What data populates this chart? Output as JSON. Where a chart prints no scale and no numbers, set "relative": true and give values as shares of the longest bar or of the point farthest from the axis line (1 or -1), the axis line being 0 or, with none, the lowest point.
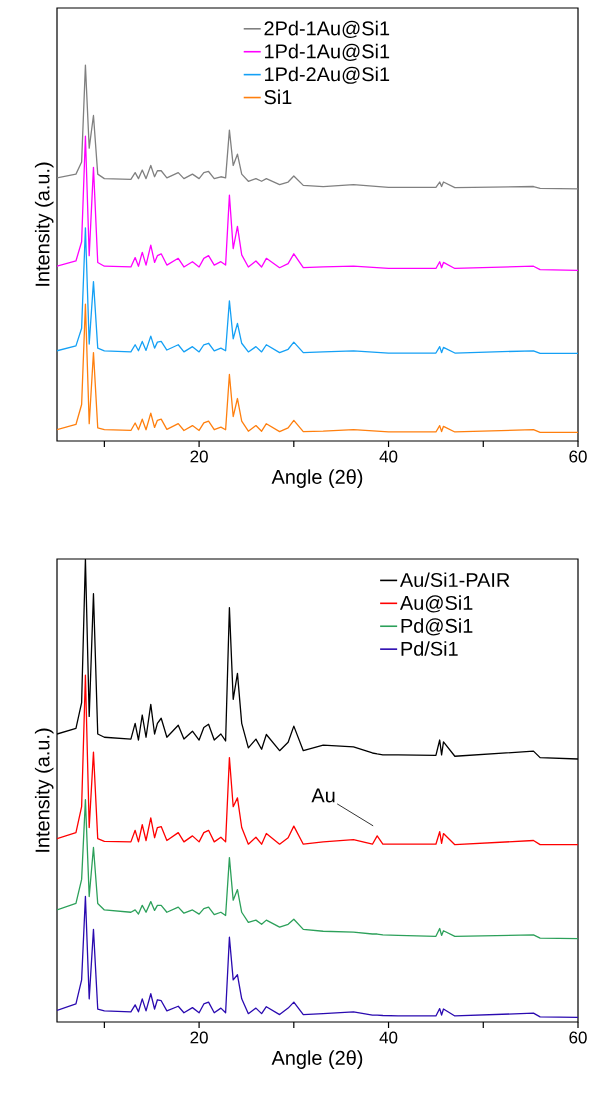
{
  "chart_data": [
    {
      "type": "line",
      "relative": true,
      "xlabel": "Angle (2θ)",
      "ylabel": "Intensity (a.u.)",
      "xlim": [
        5,
        60
      ],
      "xticks": [
        {
          "value": 10,
          "label": null
        },
        20,
        {
          "value": 30,
          "label": null
        },
        40,
        {
          "value": 50,
          "label": null
        },
        60
      ],
      "tick_labels": "x",
      "legend": "top",
      "x": [
        5,
        7.0,
        7.6,
        8.0,
        8.4,
        8.85,
        9.3,
        10,
        12.8,
        13.25,
        13.6,
        14.0,
        14.4,
        14.9,
        15.3,
        15.6,
        16.0,
        16.6,
        17.8,
        18.4,
        19.3,
        20.0,
        20.5,
        21.0,
        21.6,
        22.3,
        22.8,
        23.2,
        23.6,
        24.05,
        24.5,
        25.2,
        26.0,
        26.6,
        27.1,
        28.5,
        29.4,
        30.0,
        31,
        33.1,
        36.3,
        40,
        45.0,
        45.4,
        45.6,
        45.8,
        47,
        55.3,
        56,
        60
      ],
      "series": [
        {
          "name": "2Pd-1Au@Si1",
          "color": "#808080",
          "values": [
            0.7,
            0.71,
            0.742,
            1.0,
            0.779,
            0.866,
            0.71,
            0.698,
            0.696,
            0.714,
            0.698,
            0.721,
            0.698,
            0.733,
            0.703,
            0.719,
            0.719,
            0.7,
            0.714,
            0.698,
            0.71,
            0.698,
            0.714,
            0.717,
            0.698,
            0.703,
            0.7,
            0.827,
            0.733,
            0.763,
            0.71,
            0.691,
            0.698,
            0.691,
            0.698,
            0.682,
            0.689,
            0.705,
            0.68,
            0.677,
            0.682,
            0.675,
            0.675,
            0.689,
            0.677,
            0.689,
            0.674,
            0.677,
            0.672,
            0.671
          ]
        },
        {
          "name": "1Pd-1Au@Si1",
          "color": "#ff00ff",
          "values": [
            0.465,
            0.479,
            0.53,
            0.811,
            0.493,
            0.728,
            0.475,
            0.465,
            0.463,
            0.488,
            0.465,
            0.502,
            0.468,
            0.521,
            0.475,
            0.493,
            0.498,
            0.468,
            0.486,
            0.463,
            0.477,
            0.463,
            0.486,
            0.493,
            0.468,
            0.477,
            0.468,
            0.654,
            0.512,
            0.571,
            0.495,
            0.463,
            0.479,
            0.463,
            0.486,
            0.461,
            0.472,
            0.498,
            0.461,
            0.463,
            0.465,
            0.459,
            0.459,
            0.477,
            0.461,
            0.475,
            0.459,
            0.465,
            0.456,
            0.454
          ]
        },
        {
          "name": "1Pd-2Au@Si1",
          "color": "#14a0f5",
          "values": [
            0.24,
            0.253,
            0.3,
            0.567,
            0.258,
            0.424,
            0.247,
            0.24,
            0.237,
            0.256,
            0.24,
            0.265,
            0.241,
            0.279,
            0.247,
            0.263,
            0.265,
            0.242,
            0.256,
            0.237,
            0.251,
            0.237,
            0.256,
            0.26,
            0.24,
            0.247,
            0.24,
            0.373,
            0.272,
            0.313,
            0.26,
            0.237,
            0.251,
            0.237,
            0.256,
            0.235,
            0.244,
            0.263,
            0.235,
            0.237,
            0.24,
            0.234,
            0.234,
            0.251,
            0.235,
            0.249,
            0.234,
            0.24,
            0.233,
            0.233
          ]
        },
        {
          "name": "Si1",
          "color": "#ff7f0e",
          "values": [
            0.03,
            0.044,
            0.097,
            0.364,
            0.046,
            0.235,
            0.035,
            0.03,
            0.028,
            0.048,
            0.03,
            0.058,
            0.03,
            0.074,
            0.036,
            0.055,
            0.058,
            0.031,
            0.046,
            0.028,
            0.041,
            0.028,
            0.048,
            0.053,
            0.03,
            0.037,
            0.03,
            0.177,
            0.065,
            0.113,
            0.053,
            0.026,
            0.041,
            0.026,
            0.046,
            0.025,
            0.035,
            0.055,
            0.025,
            0.026,
            0.03,
            0.024,
            0.024,
            0.041,
            0.025,
            0.039,
            0.024,
            0.03,
            0.023,
            0.023
          ]
        }
      ]
    },
    {
      "type": "line",
      "relative": true,
      "xlabel": "Angle (2θ)",
      "ylabel": "Intensity (a.u.)",
      "xlim": [
        5,
        60
      ],
      "xticks": [
        {
          "value": 10,
          "label": null
        },
        20,
        {
          "value": 30,
          "label": null
        },
        40,
        {
          "value": 50,
          "label": null
        },
        60
      ],
      "tick_labels": "x",
      "legend": "top right",
      "annotations": [
        {
          "text": "Au",
          "x": 38.8,
          "y": 0.402
        }
      ],
      "x": [
        5,
        7.0,
        7.6,
        8.0,
        8.4,
        8.85,
        9.3,
        10,
        12.8,
        13.25,
        13.6,
        14.0,
        14.4,
        14.9,
        15.3,
        15.6,
        16.0,
        16.6,
        17.8,
        18.4,
        19.3,
        20.0,
        20.5,
        21.0,
        21.6,
        22.3,
        22.8,
        23.2,
        23.6,
        24.05,
        24.5,
        25.2,
        26.0,
        26.6,
        27.1,
        28.5,
        29.4,
        30.0,
        31,
        33.1,
        36.3,
        38.3,
        38.8,
        39.4,
        41,
        45.0,
        45.4,
        45.6,
        45.8,
        47,
        55.3,
        56,
        60
      ],
      "series": [
        {
          "name": "Au/Si1-PAIR",
          "color": "#000000",
          "values": [
            0.622,
            0.634,
            0.69,
            1.0,
            0.66,
            0.925,
            0.622,
            0.615,
            0.611,
            0.645,
            0.609,
            0.663,
            0.615,
            0.686,
            0.622,
            0.645,
            0.656,
            0.615,
            0.641,
            0.611,
            0.628,
            0.609,
            0.636,
            0.643,
            0.609,
            0.622,
            0.607,
            0.895,
            0.697,
            0.753,
            0.645,
            0.592,
            0.611,
            0.589,
            0.621,
            0.586,
            0.604,
            0.639,
            0.586,
            0.598,
            0.594,
            0.581,
            0.579,
            0.577,
            0.577,
            0.576,
            0.609,
            0.577,
            0.605,
            0.574,
            0.585,
            0.571,
            0.568
          ]
        },
        {
          "name": "Au@Si1",
          "color": "#ff0000",
          "values": [
            0.396,
            0.409,
            0.465,
            0.749,
            0.42,
            0.583,
            0.396,
            0.39,
            0.389,
            0.414,
            0.389,
            0.426,
            0.392,
            0.441,
            0.398,
            0.42,
            0.422,
            0.392,
            0.409,
            0.389,
            0.402,
            0.389,
            0.409,
            0.414,
            0.389,
            0.399,
            0.389,
            0.571,
            0.465,
            0.484,
            0.42,
            0.384,
            0.399,
            0.384,
            0.407,
            0.384,
            0.398,
            0.423,
            0.384,
            0.389,
            0.394,
            0.384,
            0.402,
            0.384,
            0.384,
            0.384,
            0.411,
            0.386,
            0.407,
            0.383,
            0.392,
            0.383,
            0.383
          ]
        },
        {
          "name": "Pd@Si1",
          "color": "#2ca05a",
          "values": [
            0.242,
            0.256,
            0.308,
            0.48,
            0.271,
            0.377,
            0.256,
            0.242,
            0.237,
            0.242,
            0.233,
            0.252,
            0.237,
            0.26,
            0.241,
            0.252,
            0.252,
            0.237,
            0.248,
            0.235,
            0.242,
            0.233,
            0.245,
            0.248,
            0.232,
            0.237,
            0.23,
            0.355,
            0.263,
            0.286,
            0.237,
            0.215,
            0.22,
            0.211,
            0.22,
            0.205,
            0.211,
            0.222,
            0.2,
            0.196,
            0.194,
            0.19,
            0.19,
            0.188,
            0.187,
            0.185,
            0.202,
            0.187,
            0.197,
            0.185,
            0.188,
            0.181,
            0.18
          ]
        },
        {
          "name": "Pd/Si1",
          "color": "#2a0ab0",
          "values": [
            0.025,
            0.039,
            0.091,
            0.271,
            0.05,
            0.2,
            0.028,
            0.024,
            0.022,
            0.037,
            0.022,
            0.05,
            0.024,
            0.061,
            0.028,
            0.048,
            0.046,
            0.024,
            0.034,
            0.02,
            0.031,
            0.02,
            0.039,
            0.043,
            0.02,
            0.03,
            0.02,
            0.183,
            0.091,
            0.102,
            0.05,
            0.018,
            0.03,
            0.018,
            0.033,
            0.016,
            0.03,
            0.043,
            0.016,
            0.018,
            0.022,
            0.015,
            0.015,
            0.014,
            0.013,
            0.013,
            0.029,
            0.015,
            0.028,
            0.013,
            0.019,
            0.011,
            0.01
          ]
        }
      ]
    }
  ]
}
